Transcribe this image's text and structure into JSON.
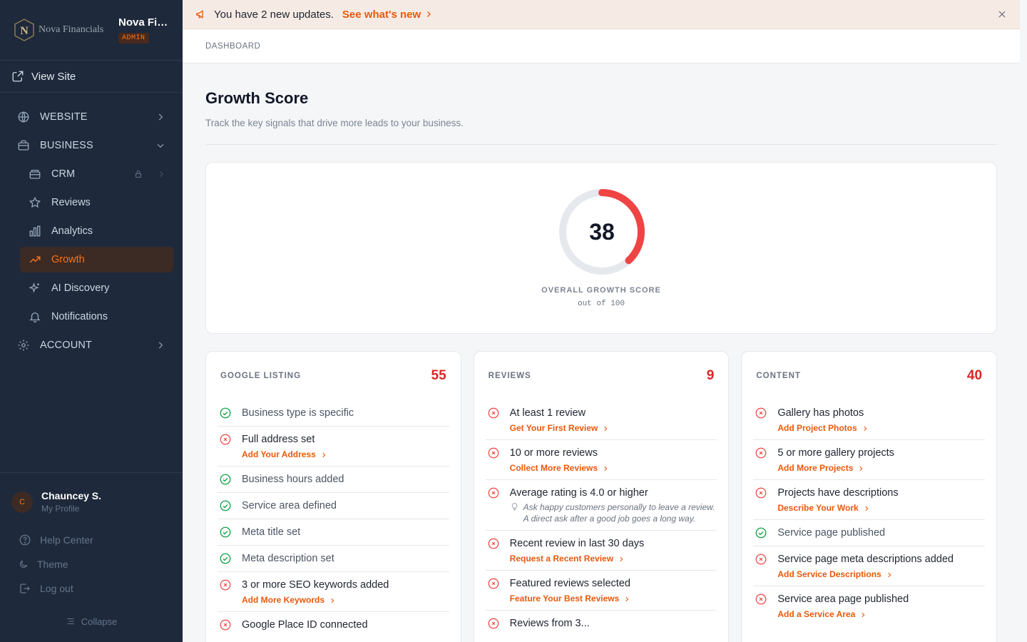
{
  "brand": {
    "logo_text": "Nova Financials",
    "name": "Nova Fin...",
    "badge": "ADMIN"
  },
  "sidebar": {
    "view_site": "View Site",
    "nav": [
      {
        "label": "WEBSITE",
        "icon": "globe-icon"
      },
      {
        "label": "BUSINESS",
        "icon": "briefcase-icon"
      },
      {
        "label": "CRM",
        "icon": "database-icon"
      },
      {
        "label": "Reviews",
        "icon": "star-icon"
      },
      {
        "label": "Analytics",
        "icon": "bar-chart-icon"
      },
      {
        "label": "Growth",
        "icon": "trending-up-icon"
      },
      {
        "label": "AI Discovery",
        "icon": "sparkle-icon"
      },
      {
        "label": "Notifications",
        "icon": "bell-icon"
      },
      {
        "label": "ACCOUNT",
        "icon": "gear-icon"
      }
    ],
    "profile": {
      "initial": "C",
      "name": "Chauncey S.",
      "sub": "My Profile"
    },
    "help": "Help Center",
    "theme": "Theme",
    "logout": "Log out",
    "collapse": "Collapse"
  },
  "banner": {
    "message": "You have 2 new updates.",
    "link": "See what's new"
  },
  "breadcrumb": "DASHBOARD",
  "page": {
    "title": "Growth Score",
    "subtitle": "Track the key signals that drive more leads to your business."
  },
  "score": {
    "value": 38,
    "value_text": "38",
    "max": 100,
    "label": "OVERALL GROWTH SCORE",
    "sub": "out of 100",
    "color": "#ef4444"
  },
  "cards": [
    {
      "title": "GOOGLE LISTING",
      "score": "55",
      "items": [
        {
          "ok": true,
          "label": "Business type is specific"
        },
        {
          "ok": false,
          "label": "Full address set",
          "link": "Add Your Address"
        },
        {
          "ok": true,
          "label": "Business hours added"
        },
        {
          "ok": true,
          "label": "Service area defined"
        },
        {
          "ok": true,
          "label": "Meta title set"
        },
        {
          "ok": true,
          "label": "Meta description set"
        },
        {
          "ok": false,
          "label": "3 or more SEO keywords added",
          "link": "Add More Keywords"
        },
        {
          "ok": false,
          "label": "Google Place ID connected"
        }
      ]
    },
    {
      "title": "REVIEWS",
      "score": "9",
      "items": [
        {
          "ok": false,
          "label": "At least 1 review",
          "link": "Get Your First Review"
        },
        {
          "ok": false,
          "label": "10 or more reviews",
          "link": "Collect More Reviews"
        },
        {
          "ok": false,
          "label": "Average rating is 4.0 or higher",
          "tip": "Ask happy customers personally to leave a review. A direct ask after a good job goes a long way."
        },
        {
          "ok": false,
          "label": "Recent review in last 30 days",
          "link": "Request a Recent Review"
        },
        {
          "ok": false,
          "label": "Featured reviews selected",
          "link": "Feature Your Best Reviews"
        },
        {
          "ok": false,
          "label": "Reviews from 3..."
        }
      ]
    },
    {
      "title": "CONTENT",
      "score": "40",
      "items": [
        {
          "ok": false,
          "label": "Gallery has photos",
          "link": "Add Project Photos"
        },
        {
          "ok": false,
          "label": "5 or more gallery projects",
          "link": "Add More Projects"
        },
        {
          "ok": false,
          "label": "Projects have descriptions",
          "link": "Describe Your Work"
        },
        {
          "ok": true,
          "label": "Service page published"
        },
        {
          "ok": false,
          "label": "Service page meta descriptions added",
          "link": "Add Service Descriptions"
        },
        {
          "ok": false,
          "label": "Service area page published",
          "link": "Add a Service Area"
        }
      ]
    }
  ]
}
